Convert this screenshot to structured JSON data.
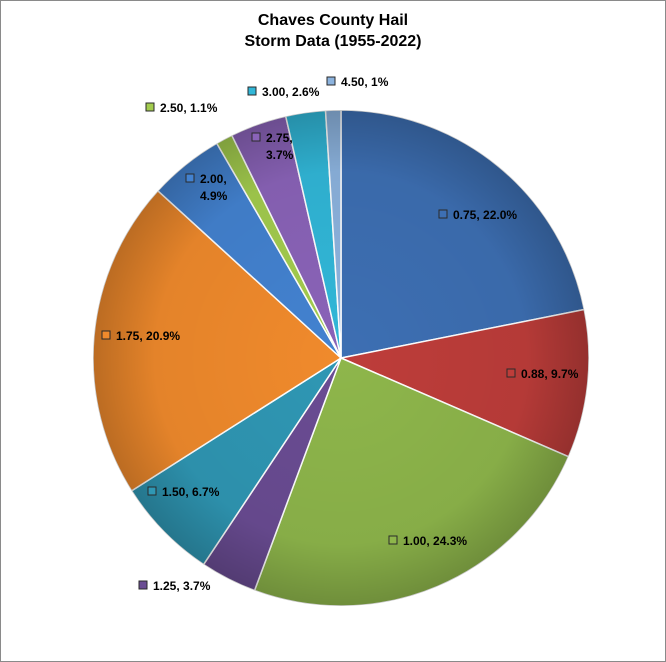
{
  "title_lines": [
    "Chaves County Hail",
    "Storm Data (1955-2022)"
  ],
  "chart_data": {
    "type": "pie",
    "title": "Chaves County Hail Storm Data (1955-2022)",
    "categories": [
      "0.75",
      "0.88",
      "1.00",
      "1.25",
      "1.50",
      "1.75",
      "2.00",
      "2.50",
      "2.75",
      "3.00",
      "4.50"
    ],
    "values": [
      22.0,
      9.7,
      24.3,
      3.7,
      6.7,
      20.9,
      4.9,
      1.1,
      3.7,
      2.6,
      1
    ],
    "labels": [
      [
        "0.75, 22.0%"
      ],
      [
        "0.88, 9.7%"
      ],
      [
        "1.00, 24.3%"
      ],
      [
        "1.25, 3.7%"
      ],
      [
        "1.50, 6.7%"
      ],
      [
        "1.75, 20.9%"
      ],
      [
        "2.00,",
        "4.9%"
      ],
      [
        "2.50, 1.1%"
      ],
      [
        "2.75,",
        "3.7%"
      ],
      [
        "3.00, 2.6%"
      ],
      [
        "4.50, 1%"
      ]
    ],
    "colors": [
      "#3d6fb3",
      "#be3d3a",
      "#8eb64b",
      "#6a4c93",
      "#2f97b4",
      "#f08a2c",
      "#4382d0",
      "#a3cc4e",
      "#8a63b8",
      "#31b7d8",
      "#8cb3de"
    ],
    "legend": "none",
    "start_angle_deg": 0,
    "direction": "clockwise"
  }
}
